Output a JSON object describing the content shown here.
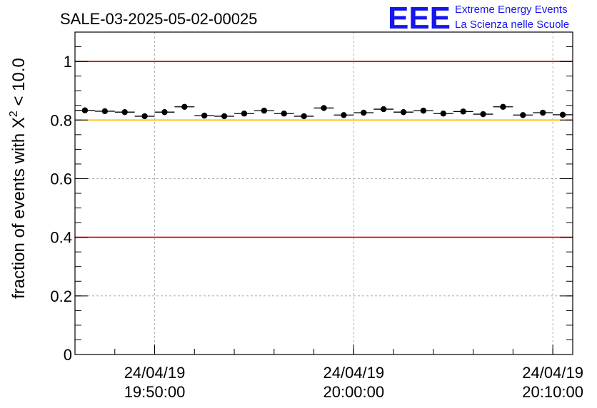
{
  "title": "SALE-03-2025-05-02-00025",
  "logo": {
    "letters": "EEE",
    "line1": "Extreme Energy Events",
    "line2": "La Scienza nelle Scuole"
  },
  "colors": {
    "limit_red": "#dd0000",
    "limit_yellow": "#ffc000",
    "marker": "#000000",
    "grid": "#a0a0a0"
  },
  "chart_data": {
    "type": "scatter",
    "title": "SALE-03-2025-05-02-00025",
    "ylabel_main": "fraction of events with ",
    "ylabel_symbol": "X",
    "ylabel_sup": "2",
    "ylabel_tail": " < 10.0",
    "xlabel": "",
    "ylim": [
      0,
      1.1
    ],
    "xlim_minutes": [
      -14.0,
      11.0
    ],
    "y_ticks": [
      {
        "value": 0,
        "label": "0"
      },
      {
        "value": 0.2,
        "label": "0.2"
      },
      {
        "value": 0.4,
        "label": "0.4"
      },
      {
        "value": 0.6,
        "label": "0.6"
      },
      {
        "value": 0.8,
        "label": "0.8"
      },
      {
        "value": 1.0,
        "label": "1"
      }
    ],
    "x_ticks": [
      {
        "minutes": -10,
        "date": "24/04/19",
        "time": "19:50:00"
      },
      {
        "minutes": 0,
        "date": "24/04/19",
        "time": "20:00:00"
      },
      {
        "minutes": 10,
        "date": "24/04/19",
        "time": "20:10:00"
      }
    ],
    "grid": true,
    "reference_lines": [
      {
        "y": 1.0,
        "color": "#dd0000"
      },
      {
        "y": 0.8,
        "color": "#ffc000"
      },
      {
        "y": 0.4,
        "color": "#dd0000"
      }
    ],
    "bin_width_minutes": 1.0,
    "x_minutes": [
      -13.5,
      -12.5,
      -11.5,
      -10.5,
      -9.5,
      -8.5,
      -7.5,
      -6.5,
      -5.5,
      -4.5,
      -3.5,
      -2.5,
      -1.5,
      -0.5,
      0.5,
      1.5,
      2.5,
      3.5,
      4.5,
      5.5,
      6.5,
      7.5,
      8.5,
      9.5,
      10.5
    ],
    "values": [
      0.833,
      0.83,
      0.827,
      0.813,
      0.827,
      0.845,
      0.815,
      0.813,
      0.822,
      0.832,
      0.822,
      0.813,
      0.841,
      0.817,
      0.825,
      0.837,
      0.827,
      0.832,
      0.822,
      0.829,
      0.82,
      0.845,
      0.817,
      0.825,
      0.818
    ]
  }
}
